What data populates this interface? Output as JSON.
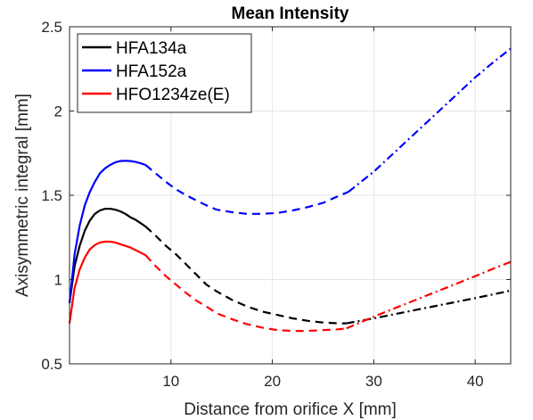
{
  "chart_data": {
    "type": "line",
    "title": "Mean Intensity",
    "xlabel": "Distance from orifice X [mm]",
    "ylabel": "Axisymmetric integral [mm]",
    "xlim": [
      0,
      43.5
    ],
    "ylim": [
      0.5,
      2.5
    ],
    "xticks": [
      10,
      20,
      30,
      40
    ],
    "yticks": [
      0.5,
      1,
      1.5,
      2,
      2.5
    ],
    "xtick_labels": [
      "10",
      "20",
      "30",
      "40"
    ],
    "ytick_labels": [
      "0.5",
      "1",
      "1.5",
      "2",
      "2.5"
    ],
    "grid": true,
    "legend_position": "top-left",
    "series": [
      {
        "name": "HFA134a",
        "color": "#000000",
        "segments": [
          {
            "style": "solid",
            "x": [
              0,
              0.5,
              1,
              1.5,
              2,
              2.5,
              3,
              3.5,
              4,
              4.5,
              5,
              5.5,
              6,
              6.5,
              7,
              7.5
            ],
            "y": [
              0.86,
              1.08,
              1.2,
              1.29,
              1.35,
              1.39,
              1.41,
              1.42,
              1.42,
              1.415,
              1.405,
              1.39,
              1.37,
              1.355,
              1.335,
              1.315
            ]
          },
          {
            "style": "dashed",
            "x": [
              7.5,
              8.5,
              9.5,
              10.5,
              11.5,
              12.5,
              13.5,
              14.5,
              16,
              17.5,
              19,
              20.5,
              22,
              23.5,
              25,
              26.5,
              27.3
            ],
            "y": [
              1.315,
              1.26,
              1.2,
              1.15,
              1.09,
              1.03,
              0.97,
              0.93,
              0.88,
              0.84,
              0.81,
              0.79,
              0.77,
              0.755,
              0.745,
              0.74,
              0.74
            ]
          },
          {
            "style": "dashdot",
            "x": [
              27.3,
              30,
              32.5,
              35,
              37.5,
              40,
              42,
              43.5
            ],
            "y": [
              0.74,
              0.77,
              0.8,
              0.83,
              0.86,
              0.89,
              0.915,
              0.935
            ]
          }
        ]
      },
      {
        "name": "HFA152a",
        "color": "#0000ff",
        "segments": [
          {
            "style": "solid",
            "x": [
              0,
              0.5,
              1,
              1.5,
              2,
              2.5,
              3,
              3.5,
              4,
              4.5,
              5,
              5.5,
              6,
              6.5,
              7,
              7.5
            ],
            "y": [
              0.86,
              1.15,
              1.32,
              1.44,
              1.52,
              1.58,
              1.63,
              1.66,
              1.68,
              1.695,
              1.703,
              1.705,
              1.703,
              1.698,
              1.69,
              1.68
            ]
          },
          {
            "style": "dashed",
            "x": [
              7.5,
              8.5,
              9.5,
              10.5,
              11.5,
              12.5,
              13.5,
              14.5,
              16,
              17.5,
              19,
              20.5,
              22,
              23.5,
              25,
              26.5,
              27.5
            ],
            "y": [
              1.68,
              1.63,
              1.58,
              1.535,
              1.5,
              1.47,
              1.44,
              1.415,
              1.4,
              1.39,
              1.39,
              1.395,
              1.41,
              1.43,
              1.455,
              1.495,
              1.52
            ]
          },
          {
            "style": "dashdot",
            "x": [
              27.5,
              30,
              32.5,
              35,
              37.5,
              40,
              42,
              43.5
            ],
            "y": [
              1.52,
              1.64,
              1.78,
              1.92,
              2.06,
              2.2,
              2.3,
              2.37
            ]
          }
        ]
      },
      {
        "name": "HFO1234ze(E)",
        "color": "#ff0000",
        "segments": [
          {
            "style": "solid",
            "x": [
              0,
              0.5,
              1,
              1.5,
              2,
              2.5,
              3,
              3.5,
              4,
              4.5,
              5,
              5.5,
              6,
              6.5,
              7,
              7.5
            ],
            "y": [
              0.74,
              0.95,
              1.06,
              1.13,
              1.18,
              1.205,
              1.22,
              1.225,
              1.225,
              1.22,
              1.21,
              1.2,
              1.19,
              1.175,
              1.16,
              1.145
            ]
          },
          {
            "style": "dashed",
            "x": [
              7.5,
              8.5,
              9.5,
              10.5,
              11.5,
              12.5,
              13.5,
              14.5,
              16,
              17.5,
              19,
              20.5,
              22,
              23.5,
              25,
              26.5,
              27.3
            ],
            "y": [
              1.145,
              1.08,
              1.02,
              0.97,
              0.92,
              0.875,
              0.84,
              0.8,
              0.765,
              0.735,
              0.715,
              0.7,
              0.695,
              0.695,
              0.7,
              0.705,
              0.71
            ]
          },
          {
            "style": "dashdot",
            "x": [
              27.3,
              30,
              32.5,
              35,
              37.5,
              40,
              42,
              43.5
            ],
            "y": [
              0.71,
              0.78,
              0.84,
              0.9,
              0.96,
              1.02,
              1.07,
              1.105
            ]
          }
        ]
      }
    ]
  }
}
